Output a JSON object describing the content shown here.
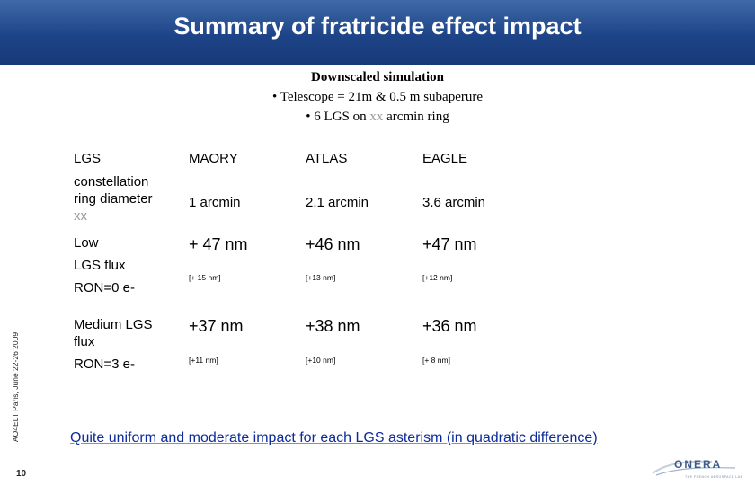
{
  "header": {
    "title": "Summary of fratricide effect impact"
  },
  "subtitle": {
    "line1": "Downscaled simulation",
    "line2": "• Telescope = 21m & 0.5 m subaperure",
    "line3_pre": "• 6 LGS on",
    "line3_grey": "xx",
    "line3_post": "arcmin ring"
  },
  "table": {
    "col_headers": [
      "MAORY",
      "ATLAS",
      "EAGLE"
    ],
    "row_diameter": {
      "label_line1": "LGS",
      "label_line2": "constellation",
      "label_line3": "ring diameter",
      "label_grey": "xx",
      "values": [
        "1 arcmin",
        "2.1 arcmin",
        "3.6 arcmin"
      ]
    },
    "row_low": {
      "label_line1": "Low",
      "label_line2": "LGS flux",
      "label_line3": "RON=0 e-",
      "values": [
        "+ 47 nm",
        "+46 nm",
        "+47 nm"
      ],
      "sub_values": [
        "[+ 15 nm]",
        "[+13 nm]",
        "[+12 nm]"
      ]
    },
    "row_medium": {
      "label_line1": "Medium LGS",
      "label_line2": "flux",
      "label_line3": "RON=3 e-",
      "values": [
        "+37 nm",
        "+38 nm",
        "+36 nm"
      ],
      "sub_values": [
        "[+11 nm]",
        "[+10 nm]",
        "[+ 8 nm]"
      ]
    }
  },
  "conclusion": "Quite uniform and moderate impact for each LGS asterism (in quadratic difference)",
  "footer": {
    "side_text": "AO4ELT Paris, June 22-26 2009",
    "page_number": "10",
    "logo_text": "ONERA",
    "logo_tagline": "THE FRENCH AEROSPACE LAB"
  },
  "colors": {
    "title_bar": "#1d4488",
    "conclusion": "#0c2a9a",
    "underline": "#e08020"
  }
}
